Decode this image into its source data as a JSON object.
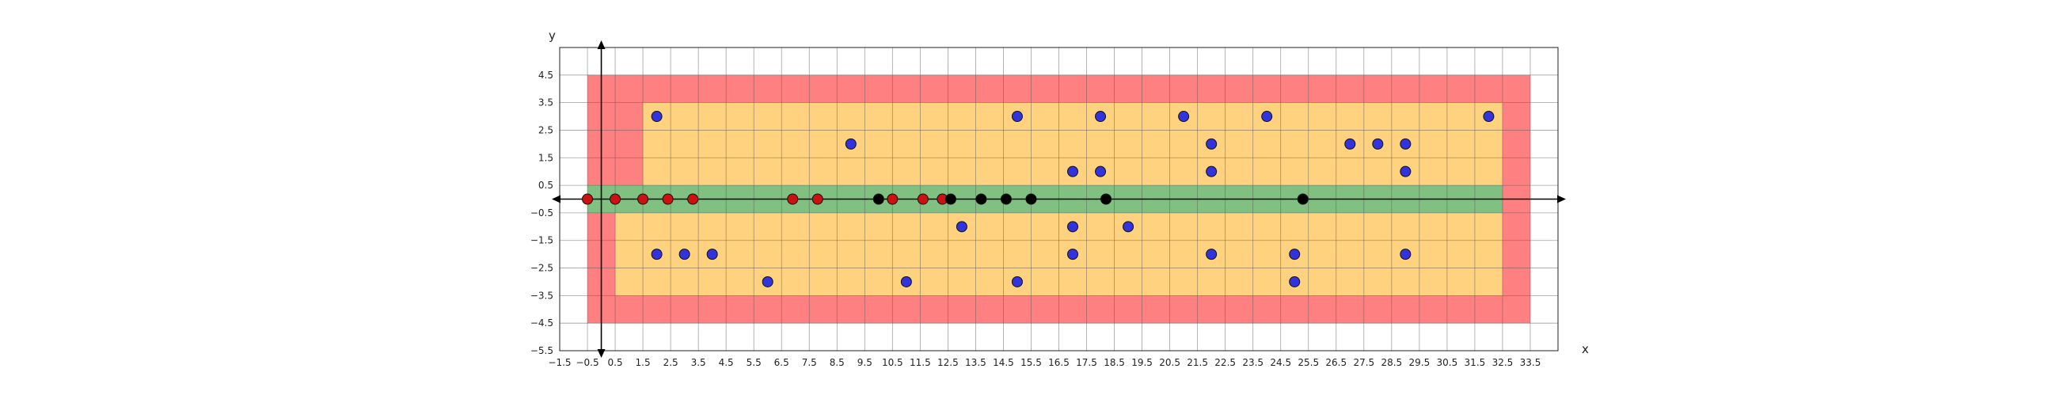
{
  "chart_data": {
    "type": "scatter",
    "title": "",
    "xlabel": "x",
    "ylabel": "y",
    "xlim": [
      -1.5,
      34.5
    ],
    "ylim": [
      -5.5,
      5.5
    ],
    "grid": true,
    "legend": "none",
    "x_ticks": [
      "−1.5",
      "−0.5",
      "0.5",
      "1.5",
      "2.5",
      "3.5",
      "4.5",
      "5.5",
      "6.5",
      "7.5",
      "8.5",
      "9.5",
      "10.5",
      "11.5",
      "12.5",
      "13.5",
      "14.5",
      "15.5",
      "16.5",
      "17.5",
      "18.5",
      "19.5",
      "20.5",
      "21.5",
      "22.5",
      "23.5",
      "24.5",
      "25.5",
      "26.5",
      "27.5",
      "28.5",
      "29.5",
      "30.5",
      "31.5",
      "32.5",
      "33.5"
    ],
    "x_tick_values": [
      -1.5,
      -0.5,
      0.5,
      1.5,
      2.5,
      3.5,
      4.5,
      5.5,
      6.5,
      7.5,
      8.5,
      9.5,
      10.5,
      11.5,
      12.5,
      13.5,
      14.5,
      15.5,
      16.5,
      17.5,
      18.5,
      19.5,
      20.5,
      21.5,
      22.5,
      23.5,
      24.5,
      25.5,
      26.5,
      27.5,
      28.5,
      29.5,
      30.5,
      31.5,
      32.5,
      33.5
    ],
    "y_ticks": [
      "4.5",
      "3.5",
      "2.5",
      "1.5",
      "0.5",
      "−0.5",
      "−1.5",
      "−2.5",
      "−3.5",
      "−4.5",
      "−5.5"
    ],
    "y_tick_values": [
      4.5,
      3.5,
      2.5,
      1.5,
      0.5,
      -0.5,
      -1.5,
      -2.5,
      -3.5,
      -4.5,
      -5.5
    ],
    "regions": [
      {
        "color": "#ff8080",
        "x": [
          -0.5,
          33.5
        ],
        "y": [
          -4.5,
          4.5
        ]
      },
      {
        "color": "#ffd280",
        "x": [
          1.5,
          32.5
        ],
        "y": [
          0.5,
          3.5
        ]
      },
      {
        "color": "#ffd280",
        "x": [
          0.5,
          32.5
        ],
        "y": [
          -3.5,
          -0.5
        ]
      },
      {
        "color": "#80c080",
        "x": [
          -0.5,
          32.5
        ],
        "y": [
          -0.5,
          0.5
        ]
      }
    ],
    "series": [
      {
        "color": "#3333dd",
        "points": [
          [
            2,
            3
          ],
          [
            15,
            3
          ],
          [
            18,
            3
          ],
          [
            21,
            3
          ],
          [
            24,
            3
          ],
          [
            32,
            3
          ],
          [
            9,
            2
          ],
          [
            22,
            2
          ],
          [
            27,
            2
          ],
          [
            28,
            2
          ],
          [
            29,
            2
          ],
          [
            17,
            1
          ],
          [
            18,
            1
          ],
          [
            22,
            1
          ],
          [
            29,
            1
          ],
          [
            13,
            -1
          ],
          [
            17,
            -1
          ],
          [
            19,
            -1
          ],
          [
            2,
            -2
          ],
          [
            3,
            -2
          ],
          [
            4,
            -2
          ],
          [
            17,
            -2
          ],
          [
            22,
            -2
          ],
          [
            25,
            -2
          ],
          [
            29,
            -2
          ],
          [
            6,
            -3
          ],
          [
            11,
            -3
          ],
          [
            15,
            -3
          ],
          [
            25,
            -3
          ]
        ]
      },
      {
        "color": "#cc1111",
        "points": [
          [
            -0.5,
            0
          ],
          [
            0.5,
            0
          ],
          [
            1.5,
            0
          ],
          [
            2.4,
            0
          ],
          [
            3.3,
            0
          ],
          [
            6.9,
            0
          ],
          [
            7.8,
            0
          ],
          [
            10.5,
            0
          ],
          [
            11.6,
            0
          ],
          [
            12.3,
            0
          ]
        ]
      },
      {
        "color": "#000000",
        "points": [
          [
            10,
            0
          ],
          [
            12.6,
            0
          ],
          [
            13.7,
            0
          ],
          [
            14.6,
            0
          ],
          [
            15.5,
            0
          ],
          [
            18.2,
            0
          ],
          [
            25.3,
            0
          ]
        ]
      }
    ]
  }
}
